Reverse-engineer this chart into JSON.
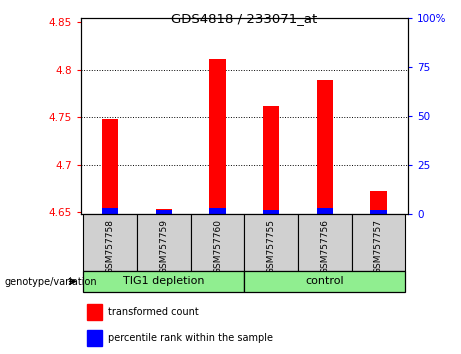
{
  "title": "GDS4818 / 233071_at",
  "samples": [
    "GSM757758",
    "GSM757759",
    "GSM757760",
    "GSM757755",
    "GSM757756",
    "GSM757757"
  ],
  "red_values": [
    4.748,
    4.653,
    4.811,
    4.762,
    4.789,
    4.672
  ],
  "blue_pct": [
    3,
    2,
    3,
    2,
    3,
    2
  ],
  "ylim_left": [
    4.648,
    4.855
  ],
  "ylim_right": [
    0,
    100
  ],
  "yticks_left": [
    4.65,
    4.7,
    4.75,
    4.8,
    4.85
  ],
  "yticks_right": [
    0,
    25,
    50,
    75,
    100
  ],
  "ytick_labels_right": [
    "0",
    "25",
    "50",
    "75",
    "100%"
  ],
  "grid_lines": [
    4.7,
    4.75,
    4.8
  ],
  "group1_label": "TIG1 depletion",
  "group2_label": "control",
  "group1_indices": [
    0,
    1,
    2
  ],
  "group2_indices": [
    3,
    4,
    5
  ],
  "group_color": "#90EE90",
  "sample_box_color": "#d0d0d0",
  "genotype_label": "genotype/variation",
  "legend_red": "transformed count",
  "legend_blue": "percentile rank within the sample",
  "bar_width": 0.3,
  "baseline": 4.648,
  "plot_bg": "#ffffff"
}
